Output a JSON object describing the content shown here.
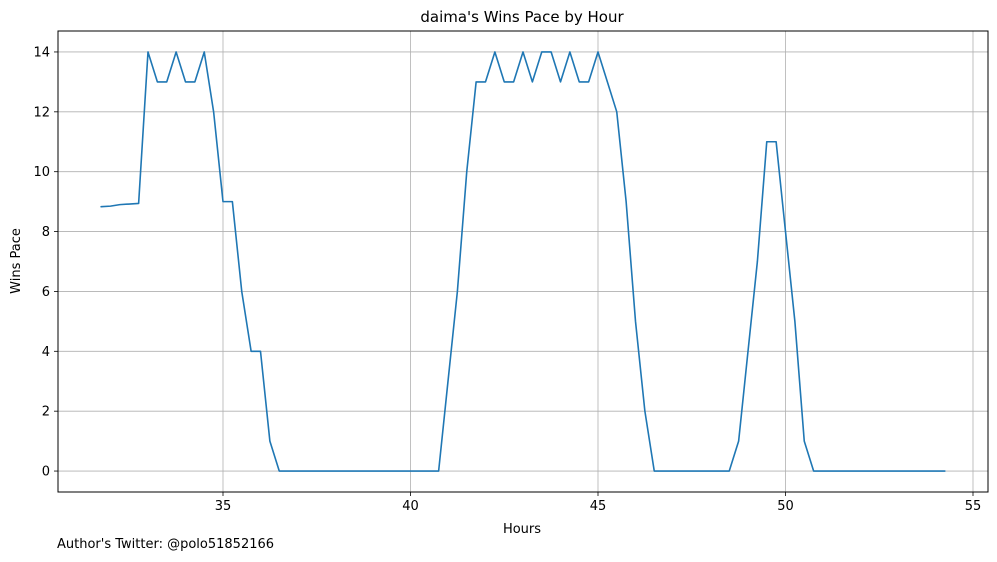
{
  "chart_data": {
    "type": "line",
    "title": "daima's Wins Pace by Hour",
    "xlabel": "Hours",
    "ylabel": "Wins Pace",
    "xlim": [
      30.6,
      55.4
    ],
    "ylim": [
      -0.7,
      14.7
    ],
    "xticks": [
      35,
      40,
      45,
      50,
      55
    ],
    "yticks": [
      0,
      2,
      4,
      6,
      8,
      10,
      12,
      14
    ],
    "grid": true,
    "series": [
      {
        "color": "#1f77b4",
        "x": [
          31.75,
          32.0,
          32.25,
          32.5,
          32.75,
          33.0,
          33.25,
          33.5,
          33.75,
          34.0,
          34.25,
          34.5,
          34.75,
          35.0,
          35.25,
          35.5,
          35.75,
          36.0,
          36.25,
          36.5,
          36.75,
          37.0,
          37.25,
          37.5,
          37.75,
          38.0,
          38.25,
          38.5,
          38.75,
          39.0,
          39.25,
          39.5,
          39.75,
          40.0,
          40.25,
          40.5,
          40.75,
          41.0,
          41.25,
          41.5,
          41.75,
          42.0,
          42.25,
          42.5,
          42.75,
          43.0,
          43.25,
          43.5,
          43.75,
          44.0,
          44.25,
          44.5,
          44.75,
          45.0,
          45.25,
          45.5,
          45.75,
          46.0,
          46.25,
          46.5,
          46.75,
          47.0,
          47.25,
          47.5,
          47.75,
          48.0,
          48.25,
          48.5,
          48.75,
          49.0,
          49.25,
          49.5,
          49.75,
          50.0,
          50.25,
          50.5,
          50.75,
          51.0,
          51.25,
          51.5,
          51.75,
          52.0,
          52.25,
          52.5,
          52.75,
          53.0,
          53.25,
          53.5,
          53.75,
          54.0,
          54.25
        ],
        "y": [
          8.83,
          8.85,
          8.9,
          8.92,
          8.94,
          14,
          13,
          13,
          14,
          13,
          13,
          14,
          12,
          9,
          9,
          6,
          4,
          4,
          1,
          0,
          0,
          0,
          0,
          0,
          0,
          0,
          0,
          0,
          0,
          0,
          0,
          0,
          0,
          0,
          0,
          0,
          0,
          3,
          6,
          10,
          13,
          13,
          14,
          13,
          13,
          14,
          13,
          14,
          14,
          13,
          14,
          13,
          13,
          14,
          13,
          12,
          9,
          5,
          2,
          0,
          0,
          0,
          0,
          0,
          0,
          0,
          0,
          0,
          1,
          4,
          7,
          11,
          11,
          8,
          5,
          1,
          0,
          0,
          0,
          0,
          0,
          0,
          0,
          0,
          0,
          0,
          0,
          0,
          0,
          0,
          0
        ]
      }
    ]
  },
  "footnote": "Author's Twitter: @polo51852166"
}
